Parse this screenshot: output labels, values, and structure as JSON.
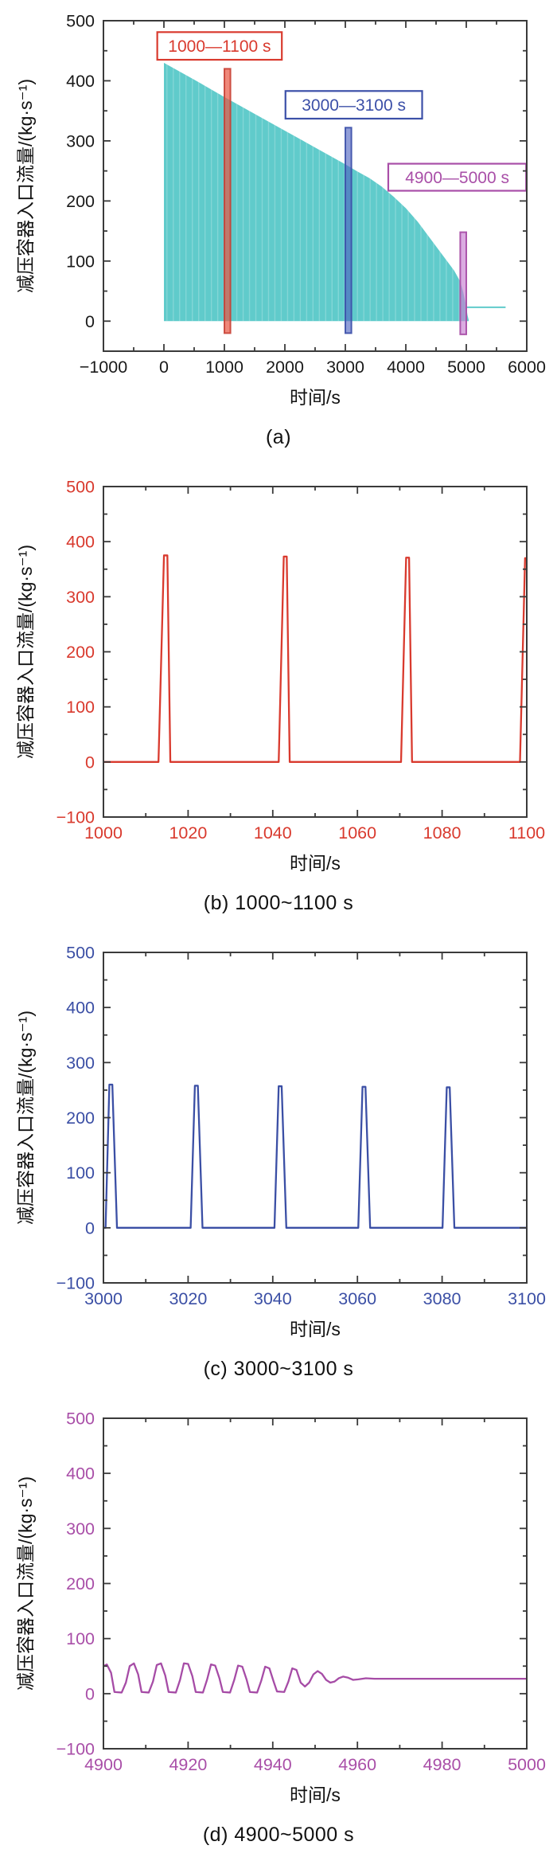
{
  "figure": {
    "ylabel": "减压容器入口流量/(kg·s⁻¹)",
    "xlabel": "时间/s",
    "spine_color": "#3a3a3a",
    "background": "#ffffff"
  },
  "chart_data": [
    {
      "id": "a",
      "type": "area",
      "caption": "(a)",
      "xlabel": "时间/s",
      "ylabel": "减压容器入口流量/(kg·s⁻¹)",
      "xlim": [
        -1000,
        6000
      ],
      "ylim": [
        -50,
        500
      ],
      "xticks": [
        -1000,
        0,
        1000,
        2000,
        3000,
        4000,
        5000,
        6000
      ],
      "xtick_labels": [
        "−1000",
        "0",
        "1000",
        "2000",
        "3000",
        "4000",
        "5000",
        "6000"
      ],
      "yticks": [
        0,
        100,
        200,
        300,
        400,
        500
      ],
      "ytick_labels": [
        "0",
        "100",
        "200",
        "300",
        "400",
        "500"
      ],
      "xminor_step": 500,
      "yminor_step": 50,
      "tick_color": "#1a1a1a",
      "line_color": "#60cbcb",
      "fill_color": "#60cbcb",
      "grid": false,
      "legend": "none",
      "series": [
        [
          0,
          430
        ],
        [
          500,
          402
        ],
        [
          1000,
          373
        ],
        [
          1500,
          345
        ],
        [
          2000,
          317
        ],
        [
          2500,
          289
        ],
        [
          3000,
          261
        ],
        [
          3200,
          249
        ],
        [
          3400,
          238
        ],
        [
          3600,
          224
        ],
        [
          3800,
          207
        ],
        [
          4000,
          188
        ],
        [
          4200,
          165
        ],
        [
          4400,
          138
        ],
        [
          4600,
          111
        ],
        [
          4800,
          84
        ],
        [
          4900,
          66
        ],
        [
          4950,
          48
        ],
        [
          5000,
          24
        ],
        [
          5020,
          10
        ],
        [
          5040,
          2
        ]
      ],
      "tail_series": [
        [
          5000,
          23
        ],
        [
          5650,
          23
        ]
      ],
      "bars": [
        {
          "name": "window-1000-1100",
          "x0": 1000,
          "x1": 1100,
          "y0": -20,
          "y1": 420,
          "fill": "rgba(232,86,66,0.70)",
          "stroke": "rgba(198,59,47,0.85)"
        },
        {
          "name": "window-3000-3100",
          "x0": 3000,
          "x1": 3100,
          "y0": -20,
          "y1": 322,
          "fill": "rgba(78,99,192,0.62)",
          "stroke": "rgba(59,79,168,0.9)"
        },
        {
          "name": "window-4900-5000",
          "x0": 4900,
          "x1": 5000,
          "y0": -22,
          "y1": 148,
          "fill": "rgba(199,129,209,0.66)",
          "stroke": "rgba(169,79,168,0.95)"
        }
      ],
      "annotations": [
        {
          "text": "1000—1100 s",
          "color": "#d93a2e",
          "x0": -110,
          "x1": 1950,
          "y0": 435,
          "y1": 481
        },
        {
          "text": "3000—3100 s",
          "color": "#3c50a8",
          "x0": 2010,
          "x1": 4270,
          "y0": 337,
          "y1": 383
        },
        {
          "text": "4900—5000 s",
          "color": "#a94fa8",
          "x0": 3710,
          "x1": 5990,
          "y0": 217,
          "y1": 262
        }
      ]
    },
    {
      "id": "b",
      "type": "line",
      "caption": "(b) 1000~1100 s",
      "xlabel": "时间/s",
      "ylabel": "减压容器入口流量/(kg·s⁻¹)",
      "xlim": [
        1000,
        1100
      ],
      "ylim": [
        -100,
        500
      ],
      "xticks": [
        1000,
        1020,
        1040,
        1060,
        1080,
        1100
      ],
      "xtick_labels": [
        "1000",
        "1020",
        "1040",
        "1060",
        "1080",
        "1100"
      ],
      "yticks": [
        -100,
        0,
        100,
        200,
        300,
        400,
        500
      ],
      "ytick_labels": [
        "−100",
        "0",
        "100",
        "200",
        "300",
        "400",
        "500"
      ],
      "xminor_step": 10,
      "yminor_step": 50,
      "tick_color": "#d93a2e",
      "line_color": "#d93a2e",
      "grid": false,
      "legend": "none",
      "series": [
        [
          1000,
          0
        ],
        [
          1013.0,
          0
        ],
        [
          1014.3,
          375
        ],
        [
          1015.1,
          375
        ],
        [
          1015.8,
          0
        ],
        [
          1041.4,
          0
        ],
        [
          1042.6,
          373
        ],
        [
          1043.3,
          373
        ],
        [
          1044.0,
          0
        ],
        [
          1070.3,
          0
        ],
        [
          1071.5,
          371
        ],
        [
          1072.2,
          371
        ],
        [
          1072.9,
          0
        ],
        [
          1098.4,
          0
        ],
        [
          1099.6,
          370
        ],
        [
          1100,
          370
        ]
      ]
    },
    {
      "id": "c",
      "type": "line",
      "caption": "(c) 3000~3100 s",
      "xlabel": "时间/s",
      "ylabel": "减压容器入口流量/(kg·s⁻¹)",
      "xlim": [
        3000,
        3100
      ],
      "ylim": [
        -100,
        500
      ],
      "xticks": [
        3000,
        3020,
        3040,
        3060,
        3080,
        3100
      ],
      "xtick_labels": [
        "3000",
        "3020",
        "3040",
        "3060",
        "3080",
        "3100"
      ],
      "yticks": [
        -100,
        0,
        100,
        200,
        300,
        400,
        500
      ],
      "ytick_labels": [
        "−100",
        "0",
        "100",
        "200",
        "300",
        "400",
        "500"
      ],
      "xminor_step": 10,
      "yminor_step": 50,
      "tick_color": "#3b4fa5",
      "line_color": "#3b4fa5",
      "grid": false,
      "legend": "none",
      "series": [
        [
          3000,
          0
        ],
        [
          3000.5,
          0
        ],
        [
          3001.4,
          260
        ],
        [
          3002.1,
          260
        ],
        [
          3003.2,
          0
        ],
        [
          3020.6,
          0
        ],
        [
          3021.6,
          258
        ],
        [
          3022.3,
          258
        ],
        [
          3023.4,
          0
        ],
        [
          3040.4,
          0
        ],
        [
          3041.4,
          257
        ],
        [
          3042.1,
          257
        ],
        [
          3043.2,
          0
        ],
        [
          3060.2,
          0
        ],
        [
          3061.2,
          256
        ],
        [
          3061.9,
          256
        ],
        [
          3063.0,
          0
        ],
        [
          3080.1,
          0
        ],
        [
          3081.1,
          255
        ],
        [
          3081.8,
          255
        ],
        [
          3082.9,
          0
        ],
        [
          3100,
          0
        ]
      ]
    },
    {
      "id": "d",
      "type": "line",
      "caption": "(d) 4900~5000 s",
      "xlabel": "时间/s",
      "ylabel": "减压容器入口流量/(kg·s⁻¹)",
      "xlim": [
        4900,
        5000
      ],
      "ylim": [
        -100,
        500
      ],
      "xticks": [
        4900,
        4920,
        4940,
        4960,
        4980,
        5000
      ],
      "xtick_labels": [
        "4900",
        "4920",
        "4940",
        "4960",
        "4980",
        "5000"
      ],
      "yticks": [
        -100,
        0,
        100,
        200,
        300,
        400,
        500
      ],
      "ytick_labels": [
        "−100",
        "0",
        "100",
        "200",
        "300",
        "400",
        "500"
      ],
      "xminor_step": 10,
      "yminor_step": 50,
      "tick_color": "#a94fa8",
      "line_color": "#a64ca6",
      "grid": false,
      "legend": "none",
      "series": [
        [
          4900,
          50
        ],
        [
          4900.8,
          53
        ],
        [
          4901.8,
          38
        ],
        [
          4902.6,
          3
        ],
        [
          4904.3,
          2
        ],
        [
          4905.3,
          20
        ],
        [
          4906.2,
          50
        ],
        [
          4907.2,
          55
        ],
        [
          4908.2,
          35
        ],
        [
          4909.0,
          3
        ],
        [
          4910.7,
          2
        ],
        [
          4911.7,
          22
        ],
        [
          4912.6,
          52
        ],
        [
          4913.6,
          55
        ],
        [
          4914.6,
          33
        ],
        [
          4915.4,
          3
        ],
        [
          4917.1,
          2
        ],
        [
          4918.1,
          25
        ],
        [
          4919.0,
          55
        ],
        [
          4920.0,
          54
        ],
        [
          4921.0,
          32
        ],
        [
          4921.8,
          3
        ],
        [
          4923.5,
          2
        ],
        [
          4924.5,
          26
        ],
        [
          4925.4,
          53
        ],
        [
          4926.4,
          51
        ],
        [
          4927.4,
          28
        ],
        [
          4928.2,
          3
        ],
        [
          4929.9,
          2
        ],
        [
          4930.9,
          25
        ],
        [
          4931.8,
          51
        ],
        [
          4932.8,
          49
        ],
        [
          4933.8,
          26
        ],
        [
          4934.6,
          3
        ],
        [
          4936.3,
          2
        ],
        [
          4937.3,
          24
        ],
        [
          4938.2,
          49
        ],
        [
          4939.2,
          46
        ],
        [
          4940.2,
          22
        ],
        [
          4941.0,
          4
        ],
        [
          4942.7,
          3
        ],
        [
          4943.7,
          22
        ],
        [
          4944.6,
          46
        ],
        [
          4945.6,
          43
        ],
        [
          4946.6,
          20
        ],
        [
          4947.6,
          13
        ],
        [
          4948.6,
          20
        ],
        [
          4949.6,
          35
        ],
        [
          4950.6,
          41
        ],
        [
          4951.6,
          36
        ],
        [
          4952.6,
          25
        ],
        [
          4953.6,
          20
        ],
        [
          4954.6,
          22
        ],
        [
          4955.6,
          28
        ],
        [
          4956.6,
          31
        ],
        [
          4957.8,
          29
        ],
        [
          4959.0,
          25
        ],
        [
          4960.2,
          26
        ],
        [
          4962.0,
          28
        ],
        [
          4964.0,
          27
        ],
        [
          4968.0,
          27
        ],
        [
          4975.0,
          27
        ],
        [
          4985.0,
          27
        ],
        [
          5000,
          27
        ]
      ]
    }
  ]
}
